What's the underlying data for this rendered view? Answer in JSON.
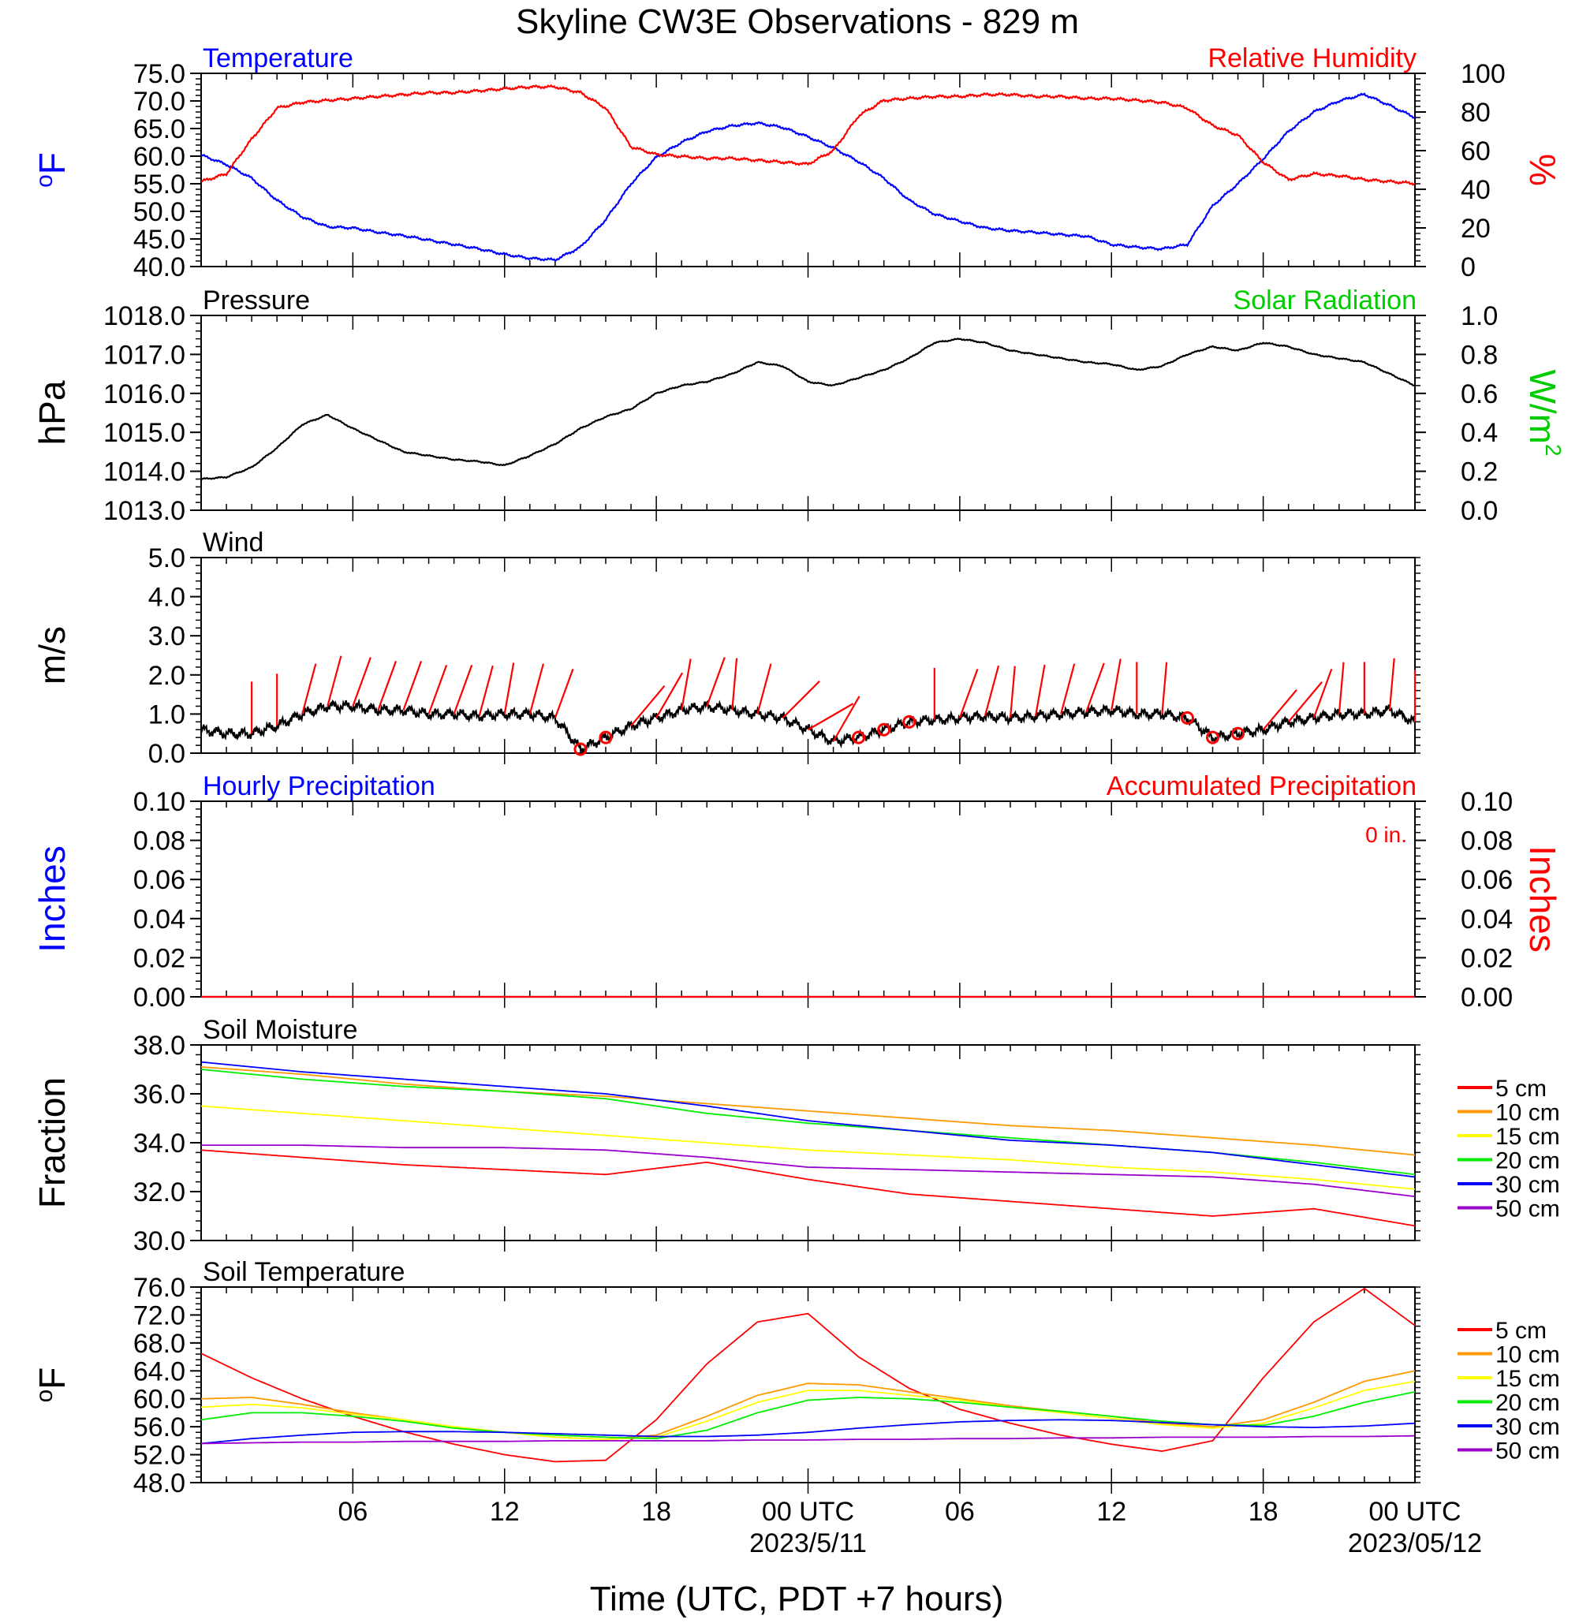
{
  "title": "Skyline CW3E Observations - 829 m",
  "xlabel": "Time (UTC, PDT +7 hours)",
  "x_ticks": {
    "labels": [
      "06",
      "12",
      "18",
      "00 UTC",
      "06",
      "12",
      "18",
      "00 UTC"
    ],
    "dates": [
      "2023/5/11",
      "2023/05/12"
    ]
  },
  "colors": {
    "blue": "#0000ff",
    "red": "#ff0000",
    "green": "#00cc00",
    "black": "#000000",
    "orange": "#ff9900",
    "yellow": "#ffff00",
    "purple": "#9900cc"
  },
  "chart_data": [
    {
      "type": "line",
      "panel": "temperature-humidity",
      "left_title": "Temperature",
      "right_title": "Relative Humidity",
      "ylabel": "oF",
      "ylabel_right": "%",
      "ylim": [
        40,
        75
      ],
      "ylim_right": [
        0,
        100
      ],
      "yticks": [
        "75.0",
        "70.0",
        "65.0",
        "60.0",
        "55.0",
        "50.0",
        "45.0",
        "40.0"
      ],
      "yticks_right": [
        "100",
        "80",
        "60",
        "40",
        "20",
        "0"
      ],
      "x_hours": [
        0,
        1,
        2,
        3,
        4,
        5,
        6,
        7,
        8,
        9,
        10,
        11,
        12,
        13,
        14,
        15,
        16,
        17,
        18,
        19,
        20,
        21,
        22,
        23,
        24,
        25,
        26,
        27,
        28,
        29,
        30,
        31,
        32,
        33,
        34,
        35,
        36,
        37,
        38,
        39,
        40,
        41,
        42,
        43,
        44,
        45,
        46,
        47,
        48
      ],
      "series": [
        {
          "name": "Temperature",
          "axis": "left",
          "color": "#0000ff",
          "values": [
            60.2,
            58.5,
            56,
            52,
            49,
            47.2,
            47,
            46.2,
            45.6,
            44.8,
            44,
            43.2,
            42.2,
            41.5,
            41.2,
            43.5,
            48.5,
            55,
            59.8,
            62.5,
            64.5,
            65.5,
            66,
            65.2,
            63.5,
            61.5,
            59,
            56,
            52,
            49.5,
            48.2,
            47,
            46.5,
            46.2,
            45.8,
            45.5,
            44,
            43.5,
            43.2,
            44,
            51,
            55,
            59.5,
            64.5,
            68,
            70,
            71.2,
            69.2,
            67
          ]
        },
        {
          "name": "Relative Humidity",
          "axis": "right",
          "color": "#ff0000",
          "values": [
            44,
            48,
            66,
            82,
            85,
            86,
            87,
            88,
            89,
            90,
            90,
            91,
            92,
            93,
            93,
            90,
            82,
            62,
            58,
            57,
            56,
            56,
            55,
            54,
            53,
            60,
            78,
            86,
            87,
            88,
            88,
            89,
            89,
            88,
            88,
            87,
            87,
            86,
            85,
            82,
            73,
            68,
            54,
            45,
            48,
            47,
            45,
            44,
            43
          ]
        }
      ]
    },
    {
      "type": "line",
      "panel": "pressure-solar",
      "left_title": "Pressure",
      "right_title": "Solar Radiation",
      "ylabel": "hPa",
      "ylabel_right": "W/m",
      "ylabel_right_sup": "2",
      "ylim": [
        1013,
        1018
      ],
      "ylim_right": [
        0,
        1
      ],
      "yticks": [
        "1018.0",
        "1017.0",
        "1016.0",
        "1015.0",
        "1014.0",
        "1013.0"
      ],
      "yticks_right": [
        "1.0",
        "0.8",
        "0.6",
        "0.4",
        "0.2",
        "0.0"
      ],
      "x_hours": [
        0,
        1,
        2,
        3,
        4,
        5,
        6,
        7,
        8,
        9,
        10,
        11,
        12,
        13,
        14,
        15,
        16,
        17,
        18,
        19,
        20,
        21,
        22,
        23,
        24,
        25,
        26,
        27,
        28,
        29,
        30,
        31,
        32,
        33,
        34,
        35,
        36,
        37,
        38,
        39,
        40,
        41,
        42,
        43,
        44,
        45,
        46,
        47,
        48
      ],
      "series": [
        {
          "name": "Pressure",
          "axis": "left",
          "color": "#000000",
          "values": [
            1013.8,
            1013.85,
            1014.1,
            1014.6,
            1015.2,
            1015.45,
            1015.1,
            1014.8,
            1014.5,
            1014.4,
            1014.3,
            1014.25,
            1014.15,
            1014.4,
            1014.7,
            1015.1,
            1015.4,
            1015.6,
            1016,
            1016.2,
            1016.3,
            1016.5,
            1016.8,
            1016.7,
            1016.3,
            1016.2,
            1016.4,
            1016.6,
            1016.9,
            1017.3,
            1017.4,
            1017.3,
            1017.1,
            1017,
            1016.9,
            1016.8,
            1016.75,
            1016.6,
            1016.7,
            1017,
            1017.2,
            1017.1,
            1017.3,
            1017.2,
            1017,
            1016.9,
            1016.8,
            1016.5,
            1016.2
          ]
        }
      ]
    },
    {
      "type": "line",
      "panel": "wind",
      "left_title": "Wind",
      "ylabel": "m/s",
      "ylim": [
        0,
        5
      ],
      "yticks": [
        "5.0",
        "4.0",
        "3.0",
        "2.0",
        "1.0",
        "0.0"
      ],
      "x_hours": [
        0,
        1,
        2,
        3,
        4,
        5,
        6,
        7,
        8,
        9,
        10,
        11,
        12,
        13,
        14,
        15,
        16,
        17,
        18,
        19,
        20,
        21,
        22,
        23,
        24,
        25,
        26,
        27,
        28,
        29,
        30,
        31,
        32,
        33,
        34,
        35,
        36,
        37,
        38,
        39,
        40,
        41,
        42,
        43,
        44,
        45,
        46,
        47,
        48
      ],
      "series": [
        {
          "name": "Wind speed",
          "axis": "left",
          "color": "#000000",
          "values": [
            0.6,
            0.5,
            0.5,
            0.7,
            1.0,
            1.2,
            1.2,
            1.1,
            1.1,
            1.0,
            1.0,
            0.95,
            1.0,
            1.0,
            0.9,
            0.1,
            0.4,
            0.7,
            0.9,
            1.1,
            1.2,
            1.1,
            1.0,
            0.9,
            0.6,
            0.3,
            0.4,
            0.6,
            0.8,
            0.85,
            0.9,
            0.95,
            0.9,
            0.95,
            1.0,
            1.05,
            1.1,
            1.0,
            1.0,
            0.9,
            0.4,
            0.5,
            0.6,
            0.8,
            0.9,
            1.0,
            1.0,
            1.1,
            0.8
          ]
        }
      ],
      "barbs": [
        {
          "hour": 2,
          "direction_deg": 180
        },
        {
          "hour": 3,
          "direction_deg": 180
        },
        {
          "hour": 4,
          "direction_deg": 195
        },
        {
          "hour": 5,
          "direction_deg": 195
        },
        {
          "hour": 6,
          "direction_deg": 200
        },
        {
          "hour": 7,
          "direction_deg": 200
        },
        {
          "hour": 8,
          "direction_deg": 200
        },
        {
          "hour": 9,
          "direction_deg": 200
        },
        {
          "hour": 10,
          "direction_deg": 200
        },
        {
          "hour": 11,
          "direction_deg": 195
        },
        {
          "hour": 12,
          "direction_deg": 190
        },
        {
          "hour": 13,
          "direction_deg": 195
        },
        {
          "hour": 14,
          "direction_deg": 200
        },
        {
          "hour": 15,
          "direction_deg": 0,
          "calm": true
        },
        {
          "hour": 16,
          "direction_deg": 0,
          "calm": true
        },
        {
          "hour": 17,
          "direction_deg": 220
        },
        {
          "hour": 18,
          "direction_deg": 210
        },
        {
          "hour": 19,
          "direction_deg": 190
        },
        {
          "hour": 20,
          "direction_deg": 200
        },
        {
          "hour": 21,
          "direction_deg": 185
        },
        {
          "hour": 22,
          "direction_deg": 195
        },
        {
          "hour": 23,
          "direction_deg": 225
        },
        {
          "hour": 24,
          "direction_deg": 240
        },
        {
          "hour": 25,
          "direction_deg": 210
        },
        {
          "hour": 26,
          "direction_deg": 0,
          "calm": true
        },
        {
          "hour": 27,
          "direction_deg": 0,
          "calm": true
        },
        {
          "hour": 28,
          "direction_deg": 0,
          "calm": true
        },
        {
          "hour": 29,
          "direction_deg": 180
        },
        {
          "hour": 30,
          "direction_deg": 200
        },
        {
          "hour": 31,
          "direction_deg": 195
        },
        {
          "hour": 32,
          "direction_deg": 185
        },
        {
          "hour": 33,
          "direction_deg": 190
        },
        {
          "hour": 34,
          "direction_deg": 195
        },
        {
          "hour": 35,
          "direction_deg": 200
        },
        {
          "hour": 36,
          "direction_deg": 190
        },
        {
          "hour": 37,
          "direction_deg": 180
        },
        {
          "hour": 38,
          "direction_deg": 185
        },
        {
          "hour": 39,
          "direction_deg": 0,
          "calm": true
        },
        {
          "hour": 40,
          "direction_deg": 0,
          "calm": true
        },
        {
          "hour": 41,
          "direction_deg": 0,
          "calm": true
        },
        {
          "hour": 42,
          "direction_deg": 220
        },
        {
          "hour": 43,
          "direction_deg": 220
        },
        {
          "hour": 44,
          "direction_deg": 200
        },
        {
          "hour": 45,
          "direction_deg": 185
        },
        {
          "hour": 46,
          "direction_deg": 180
        },
        {
          "hour": 47,
          "direction_deg": 185
        },
        {
          "hour": 48,
          "direction_deg": 180
        }
      ]
    },
    {
      "type": "line",
      "panel": "precipitation",
      "left_title": "Hourly Precipitation",
      "right_title": "Accumulated Precipitation",
      "annotation": "0 in.",
      "ylabel": "Inches",
      "ylabel_right": "Inches",
      "ylim": [
        0,
        0.1
      ],
      "ylim_right": [
        0,
        0.1
      ],
      "yticks": [
        "0.10",
        "0.08",
        "0.06",
        "0.04",
        "0.02",
        "0.00"
      ],
      "yticks_right": [
        "0.10",
        "0.08",
        "0.06",
        "0.04",
        "0.02",
        "0.00"
      ],
      "x_hours": [
        0,
        48
      ],
      "series": [
        {
          "name": "Hourly Precipitation",
          "axis": "left",
          "color": "#0000ff",
          "values": [
            0,
            0
          ]
        },
        {
          "name": "Accumulated Precipitation",
          "axis": "right",
          "color": "#ff0000",
          "values": [
            0,
            0
          ]
        }
      ]
    },
    {
      "type": "line",
      "panel": "soil-moisture",
      "left_title": "Soil Moisture",
      "ylabel": "Fraction",
      "ylim": [
        30,
        38
      ],
      "yticks": [
        "38.0",
        "36.0",
        "34.0",
        "32.0",
        "30.0"
      ],
      "x_hours": [
        0,
        4,
        8,
        12,
        16,
        20,
        24,
        28,
        32,
        36,
        40,
        44,
        48
      ],
      "series": [
        {
          "name": "5 cm",
          "color": "#ff0000",
          "values": [
            33.7,
            33.4,
            33.1,
            32.9,
            32.7,
            33.2,
            32.5,
            31.9,
            31.6,
            31.3,
            31.0,
            31.3,
            30.6
          ]
        },
        {
          "name": "10 cm",
          "color": "#ff9900",
          "values": [
            37.1,
            36.8,
            36.4,
            36.1,
            35.9,
            35.6,
            35.3,
            35.0,
            34.7,
            34.5,
            34.2,
            33.9,
            33.5
          ]
        },
        {
          "name": "15 cm",
          "color": "#ffff00",
          "values": [
            35.5,
            35.2,
            34.9,
            34.6,
            34.3,
            34.0,
            33.7,
            33.5,
            33.3,
            33.0,
            32.8,
            32.5,
            32.1
          ]
        },
        {
          "name": "20 cm",
          "color": "#00ee00",
          "values": [
            37.0,
            36.6,
            36.3,
            36.1,
            35.8,
            35.2,
            34.8,
            34.5,
            34.2,
            33.9,
            33.6,
            33.2,
            32.7
          ]
        },
        {
          "name": "30 cm",
          "color": "#0000ff",
          "values": [
            37.3,
            36.9,
            36.6,
            36.3,
            36.0,
            35.5,
            34.9,
            34.5,
            34.1,
            33.9,
            33.6,
            33.1,
            32.6
          ]
        },
        {
          "name": "50 cm",
          "color": "#9900cc",
          "values": [
            33.9,
            33.9,
            33.8,
            33.8,
            33.7,
            33.4,
            33.0,
            32.9,
            32.8,
            32.7,
            32.6,
            32.3,
            31.8
          ]
        }
      ]
    },
    {
      "type": "line",
      "panel": "soil-temperature",
      "left_title": "Soil Temperature",
      "ylabel": "oF",
      "ylim": [
        48,
        76
      ],
      "yticks": [
        "76.0",
        "72.0",
        "68.0",
        "64.0",
        "60.0",
        "56.0",
        "52.0",
        "48.0"
      ],
      "x_hours": [
        0,
        2,
        4,
        6,
        8,
        10,
        12,
        14,
        16,
        18,
        20,
        22,
        24,
        26,
        28,
        30,
        32,
        34,
        36,
        38,
        40,
        42,
        44,
        46,
        48
      ],
      "series": [
        {
          "name": "5 cm",
          "color": "#ff0000",
          "values": [
            66.5,
            63,
            60,
            57.5,
            55.3,
            53.5,
            52,
            51,
            51.2,
            57,
            65,
            71,
            72.2,
            66,
            61.5,
            58.5,
            56.5,
            54.8,
            53.5,
            52.5,
            54,
            63,
            71,
            75.8,
            70.5
          ]
        },
        {
          "name": "10 cm",
          "color": "#ff9900",
          "values": [
            60,
            60.2,
            59.2,
            58,
            57,
            56,
            55.2,
            54.5,
            54.2,
            54.8,
            57.5,
            60.5,
            62.2,
            62,
            61,
            60,
            59,
            58.2,
            57.5,
            56.5,
            56,
            57,
            59.5,
            62.5,
            64
          ]
        },
        {
          "name": "15 cm",
          "color": "#ffff00",
          "values": [
            58.8,
            59.2,
            58.7,
            57.8,
            57,
            56,
            55.2,
            54.5,
            54.2,
            54.5,
            56.8,
            59.5,
            61.2,
            61.2,
            60.5,
            59.8,
            58.8,
            58,
            57.2,
            56.3,
            55.8,
            56.5,
            58.7,
            61.2,
            62.5
          ]
        },
        {
          "name": "20 cm",
          "color": "#00ee00",
          "values": [
            57,
            58,
            58,
            57.5,
            56.8,
            55.8,
            55.2,
            54.8,
            54.5,
            54.3,
            55.5,
            58,
            59.8,
            60.2,
            60,
            59.5,
            58.8,
            58.2,
            57.5,
            56.8,
            56.3,
            56.2,
            57.5,
            59.5,
            61
          ]
        },
        {
          "name": "30 cm",
          "color": "#0000ff",
          "values": [
            53.6,
            54.3,
            54.8,
            55.2,
            55.3,
            55.3,
            55.2,
            55.0,
            54.8,
            54.6,
            54.6,
            54.8,
            55.2,
            55.8,
            56.3,
            56.7,
            56.9,
            57.0,
            56.9,
            56.6,
            56.3,
            56.0,
            55.9,
            56.1,
            56.5
          ]
        },
        {
          "name": "50 cm",
          "color": "#9900cc",
          "values": [
            53.6,
            53.7,
            53.8,
            53.8,
            53.9,
            53.9,
            53.9,
            54.0,
            54.0,
            54.0,
            54.0,
            54.1,
            54.1,
            54.2,
            54.2,
            54.3,
            54.3,
            54.4,
            54.4,
            54.5,
            54.5,
            54.5,
            54.6,
            54.6,
            54.7
          ]
        }
      ]
    }
  ]
}
